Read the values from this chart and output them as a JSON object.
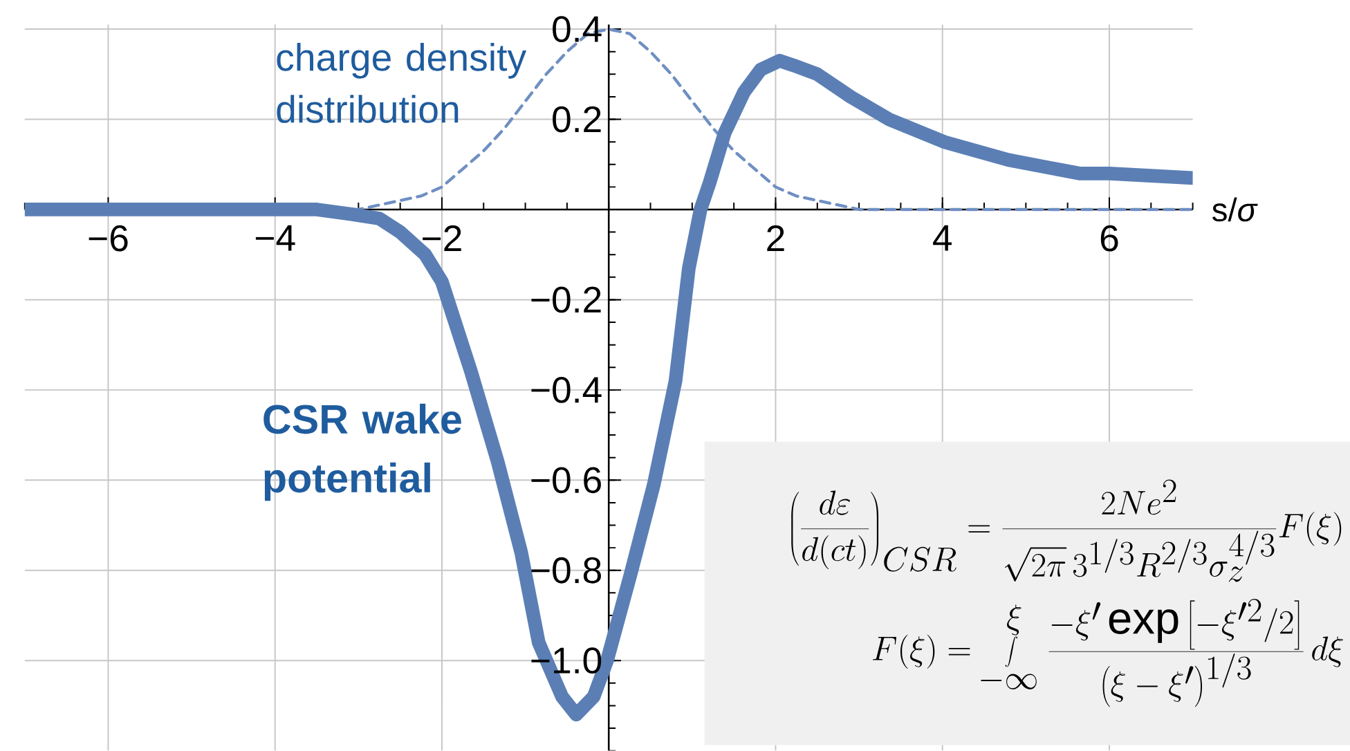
{
  "chart_data": {
    "type": "line",
    "xlabel": "s/*σ*",
    "xlim": [
      -7,
      7
    ],
    "ylim": [
      -1.2,
      0.41
    ],
    "xticks": [
      {
        "value": -6,
        "label": "−6"
      },
      {
        "value": -4,
        "label": "−4"
      },
      {
        "value": -2,
        "label": "−2"
      },
      2,
      4,
      6
    ],
    "yticks": [
      {
        "value": -1.0,
        "label": "−1.0"
      },
      {
        "value": -0.8,
        "label": "−0.8"
      },
      {
        "value": -0.6,
        "label": "−0.6"
      },
      {
        "value": -0.4,
        "label": "−0.4"
      },
      {
        "value": -0.2,
        "label": "−0.2"
      },
      0.2,
      0.4
    ],
    "grid": true,
    "series": [
      {
        "name": "charge density distribution",
        "color": "#6f8fc2",
        "line_style": "dashed",
        "x": [
          -7,
          -4,
          -3.5,
          -3,
          -2.75,
          -2.5,
          -2.25,
          -2,
          -1.75,
          -1.5,
          -1.25,
          -1,
          -0.75,
          -0.5,
          -0.25,
          0,
          0.25,
          0.5,
          0.75,
          1,
          1.25,
          1.5,
          1.75,
          2,
          2.25,
          2.5,
          2.75,
          3,
          3.5,
          4,
          7
        ],
        "values": [
          0,
          0,
          0,
          0,
          0.01,
          0.02,
          0.03,
          0.05,
          0.09,
          0.13,
          0.18,
          0.24,
          0.3,
          0.35,
          0.39,
          0.4,
          0.39,
          0.35,
          0.3,
          0.24,
          0.18,
          0.13,
          0.09,
          0.05,
          0.03,
          0.02,
          0.01,
          0,
          0,
          0,
          0
        ]
      },
      {
        "name": "CSR wake potential",
        "color": "#5b7fb5",
        "line_style": "solid",
        "x": [
          -7,
          -5,
          -4,
          -3.5,
          -3.1,
          -2.75,
          -2.5,
          -2.2,
          -2,
          -1.65,
          -1.33,
          -1.05,
          -0.84,
          -0.56,
          -0.39,
          -0.18,
          -0.02,
          0.26,
          0.54,
          0.8,
          0.96,
          1.1,
          1.21,
          1.39,
          1.62,
          1.82,
          2.05,
          2.21,
          2.5,
          2.9,
          3.36,
          4.02,
          4.79,
          5.64,
          6,
          7
        ],
        "values": [
          0,
          0,
          0,
          0,
          -0.01,
          -0.02,
          -0.05,
          -0.1,
          -0.16,
          -0.36,
          -0.56,
          -0.76,
          -0.96,
          -1.08,
          -1.12,
          -1.08,
          -1.0,
          -0.81,
          -0.61,
          -0.38,
          -0.13,
          0,
          0.06,
          0.17,
          0.26,
          0.31,
          0.33,
          0.32,
          0.3,
          0.25,
          0.2,
          0.15,
          0.11,
          0.08,
          0.08,
          0.07
        ]
      }
    ],
    "annotations": [
      "\\left(\\frac{d\\varepsilon}{d(ct)}\\right)_{CSR}=\\frac{2Ne^{2}}{\\sqrt{2\\pi}\\,3^{1/3}R^{2/3}\\sigma_{z}^{4/3}}F(\\xi)",
      "F(\\xi)=\\int\\limits_{-\\infty}^{\\xi}\\frac{-\\xi'\\exp\\left[-\\xi'^{2}/2\\right]}{\\left(\\xi-\\xi'\\right)^{1/3}}\\,d\\xi"
    ]
  }
}
